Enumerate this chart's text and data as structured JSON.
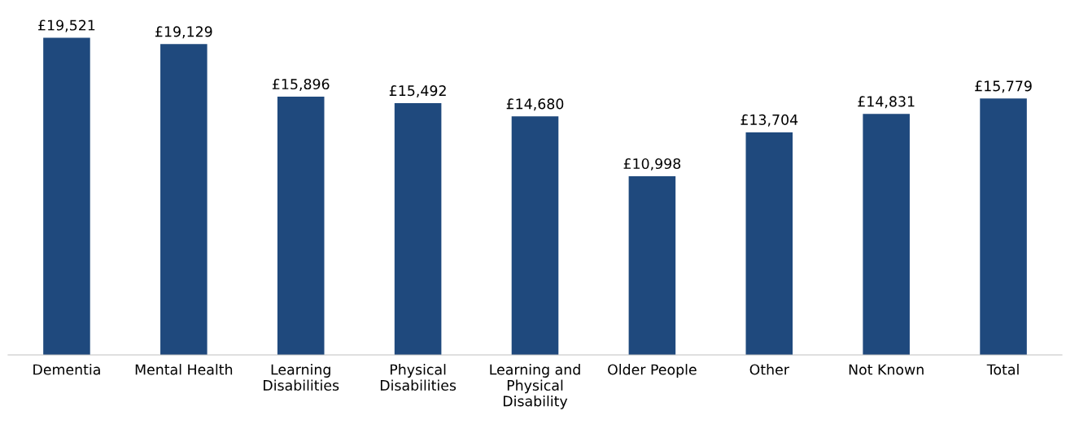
{
  "chart_data": {
    "type": "bar",
    "categories": [
      "Dementia",
      "Mental Health",
      "Learning\nDisabilities",
      "Physical\nDisabilities",
      "Learning and\nPhysical\nDisability",
      "Older People",
      "Other",
      "Not Known",
      "Total"
    ],
    "values": [
      19521,
      19129,
      15896,
      15492,
      14680,
      10998,
      13704,
      14831,
      15779
    ],
    "value_labels": [
      "£19,521",
      "£19,129",
      "£15,896",
      "£15,492",
      "£14,680",
      "£10,998",
      "£13,704",
      "£14,831",
      "£15,779"
    ],
    "color": "#1f497d",
    "grid": false,
    "legend": false
  }
}
